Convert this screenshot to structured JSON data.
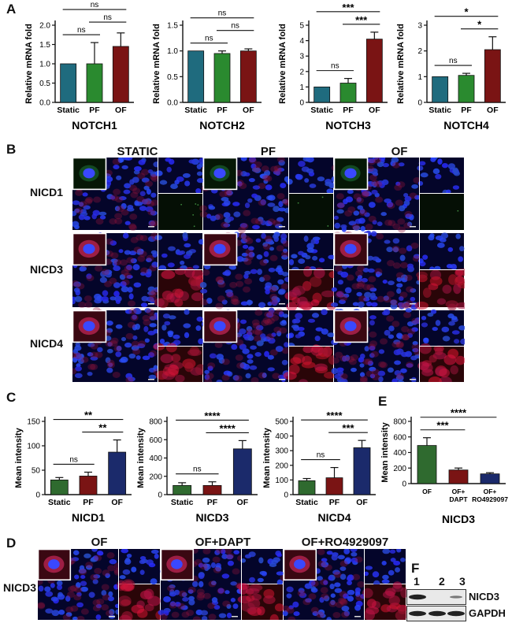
{
  "panel_letters": {
    "a": "A",
    "b": "B",
    "c": "C",
    "d": "D",
    "e": "E",
    "f": "F"
  },
  "colors": {
    "static_teal": "#1f6b7e",
    "pf_green": "#2a8a2f",
    "of_darkred": "#7a1414",
    "navy": "#1b2a6b",
    "red": "#8a1c1c",
    "green": "#2f6a2f",
    "blue_dapi": "#1a2ad0"
  },
  "panel_b": {
    "columns": [
      "STATIC",
      "PF",
      "OF"
    ],
    "rows": [
      "NICD1",
      "NICD3",
      "NICD4"
    ]
  },
  "panel_d": {
    "columns": [
      "OF",
      "OF+DAPT",
      "OF+RO4929097"
    ],
    "row": "NICD3"
  },
  "panel_f": {
    "lanes": [
      "1",
      "2",
      "3"
    ],
    "bands": [
      "NICD3",
      "GAPDH"
    ]
  },
  "chart_data": [
    {
      "id": "a1",
      "type": "bar",
      "categories": [
        "Static",
        "PF",
        "OF"
      ],
      "values": [
        1.0,
        1.0,
        1.45
      ],
      "errors": [
        0,
        0.55,
        0.35
      ],
      "ylabel": "Relative mRNA fold",
      "xlabel": "NOTCH1",
      "ylim": [
        0,
        2.0
      ],
      "yticks": [
        "0.0",
        "0.5",
        "1.0",
        "1.5",
        "2.0"
      ],
      "colors": [
        "#1f6b7e",
        "#2a8a2f",
        "#7a1414"
      ],
      "sig": [
        {
          "from": 0,
          "to": 1,
          "label": "ns"
        },
        {
          "from": 0,
          "to": 2,
          "label": "ns"
        },
        {
          "from": 1,
          "to": 2,
          "label": "ns"
        }
      ]
    },
    {
      "id": "a2",
      "type": "bar",
      "categories": [
        "Static",
        "PF",
        "OF"
      ],
      "values": [
        1.0,
        0.95,
        1.0
      ],
      "errors": [
        0,
        0.05,
        0.04
      ],
      "ylabel": "Relative mRNA fold",
      "xlabel": "NOTCH2",
      "ylim": [
        0,
        1.5
      ],
      "yticks": [
        "0.0",
        "0.5",
        "1.0",
        "1.5"
      ],
      "colors": [
        "#1f6b7e",
        "#2a8a2f",
        "#7a1414"
      ],
      "sig": [
        {
          "from": 0,
          "to": 1,
          "label": "ns"
        },
        {
          "from": 0,
          "to": 2,
          "label": "ns"
        },
        {
          "from": 1,
          "to": 2,
          "label": "ns"
        }
      ]
    },
    {
      "id": "a3",
      "type": "bar",
      "categories": [
        "Static",
        "PF",
        "OF"
      ],
      "values": [
        1.0,
        1.25,
        4.1
      ],
      "errors": [
        0,
        0.3,
        0.45
      ],
      "ylabel": "Relative mRNA fold",
      "xlabel": "NOTCH3",
      "ylim": [
        0,
        5
      ],
      "yticks": [
        "0",
        "1",
        "2",
        "3",
        "4",
        "5"
      ],
      "colors": [
        "#1f6b7e",
        "#2a8a2f",
        "#7a1414"
      ],
      "sig": [
        {
          "from": 0,
          "to": 1,
          "label": "ns"
        },
        {
          "from": 0,
          "to": 2,
          "label": "***"
        },
        {
          "from": 1,
          "to": 2,
          "label": "***"
        }
      ]
    },
    {
      "id": "a4",
      "type": "bar",
      "categories": [
        "Static",
        "PF",
        "OF"
      ],
      "values": [
        1.0,
        1.05,
        2.05
      ],
      "errors": [
        0,
        0.08,
        0.5
      ],
      "ylabel": "Relative mRNA fold",
      "xlabel": "NOTCH4",
      "ylim": [
        0,
        3
      ],
      "yticks": [
        "0",
        "1",
        "2",
        "3"
      ],
      "colors": [
        "#1f6b7e",
        "#2a8a2f",
        "#7a1414"
      ],
      "sig": [
        {
          "from": 0,
          "to": 1,
          "label": "ns"
        },
        {
          "from": 0,
          "to": 2,
          "label": "*"
        },
        {
          "from": 1,
          "to": 2,
          "label": "*"
        }
      ]
    },
    {
      "id": "c1",
      "type": "bar",
      "categories": [
        "Static",
        "PF",
        "OF"
      ],
      "values": [
        30,
        38,
        87
      ],
      "errors": [
        5,
        8,
        25
      ],
      "ylabel": "Mean intensity",
      "xlabel": "NICD1",
      "ylim": [
        0,
        150
      ],
      "yticks": [
        "0",
        "50",
        "100",
        "150"
      ],
      "colors": [
        "#2f6a2f",
        "#7a1414",
        "#1b2a6b"
      ],
      "sig": [
        {
          "from": 0,
          "to": 1,
          "label": "ns"
        },
        {
          "from": 0,
          "to": 2,
          "label": "**"
        },
        {
          "from": 1,
          "to": 2,
          "label": "**"
        }
      ]
    },
    {
      "id": "c2",
      "type": "bar",
      "categories": [
        "Static",
        "PF",
        "OF"
      ],
      "values": [
        100,
        100,
        500
      ],
      "errors": [
        30,
        40,
        90
      ],
      "ylabel": "Mean intensity",
      "xlabel": "NICD3",
      "ylim": [
        0,
        800
      ],
      "yticks": [
        "0",
        "200",
        "400",
        "600",
        "800"
      ],
      "colors": [
        "#2f6a2f",
        "#7a1414",
        "#1b2a6b"
      ],
      "sig": [
        {
          "from": 0,
          "to": 1,
          "label": "ns"
        },
        {
          "from": 0,
          "to": 2,
          "label": "****"
        },
        {
          "from": 1,
          "to": 2,
          "label": "****"
        }
      ]
    },
    {
      "id": "c3",
      "type": "bar",
      "categories": [
        "Static",
        "PF",
        "OF"
      ],
      "values": [
        95,
        115,
        320
      ],
      "errors": [
        15,
        70,
        50
      ],
      "ylabel": "Mean intensity",
      "xlabel": "NICD4",
      "ylim": [
        0,
        500
      ],
      "yticks": [
        "0",
        "100",
        "200",
        "300",
        "400",
        "500"
      ],
      "colors": [
        "#2f6a2f",
        "#7a1414",
        "#1b2a6b"
      ],
      "sig": [
        {
          "from": 0,
          "to": 1,
          "label": "ns"
        },
        {
          "from": 0,
          "to": 2,
          "label": "****"
        },
        {
          "from": 1,
          "to": 2,
          "label": "***"
        }
      ]
    },
    {
      "id": "e1",
      "type": "bar",
      "categories": [
        "OF",
        "OF+\nDAPT",
        "OF+\nRO4929097"
      ],
      "values": [
        490,
        175,
        125
      ],
      "errors": [
        100,
        25,
        15
      ],
      "ylabel": "Mean intensity",
      "xlabel": "NICD3",
      "ylim": [
        0,
        800
      ],
      "yticks": [
        "0",
        "200",
        "400",
        "600",
        "800"
      ],
      "colors": [
        "#2f6a2f",
        "#7a1414",
        "#1b2a6b"
      ],
      "sig": [
        {
          "from": 0,
          "to": 1,
          "label": "***"
        },
        {
          "from": 0,
          "to": 2,
          "label": "****"
        }
      ]
    }
  ]
}
